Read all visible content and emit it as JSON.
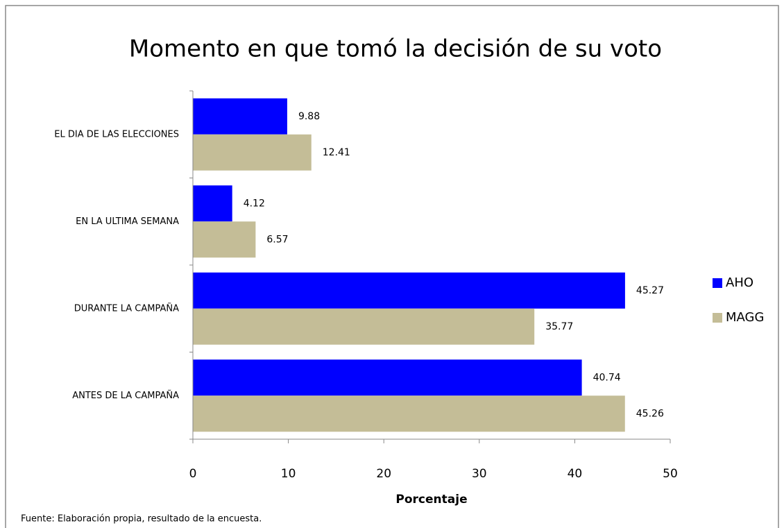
{
  "chart_data": {
    "type": "barh",
    "title": "Momento en que tomó la decisión de su voto",
    "categories": [
      "EL DIA DE LAS ELECCIONES",
      "EN LA ULTIMA SEMANA",
      "DURANTE LA CAMPAÑA",
      "ANTES DE LA CAMPAÑA"
    ],
    "series": [
      {
        "name": "AHO",
        "color": "#0000ff",
        "values": [
          9.88,
          4.12,
          45.27,
          40.74
        ]
      },
      {
        "name": "MAGG",
        "color": "#c4bd97",
        "values": [
          12.41,
          6.57,
          35.77,
          45.26
        ]
      }
    ],
    "xlim": [
      0,
      50
    ],
    "xticks": [
      0,
      10,
      20,
      30,
      40,
      50
    ],
    "xlabel": "Porcentaje",
    "legend": "right",
    "source": "Fuente: Elaboración propia, resultado de la encuesta."
  }
}
